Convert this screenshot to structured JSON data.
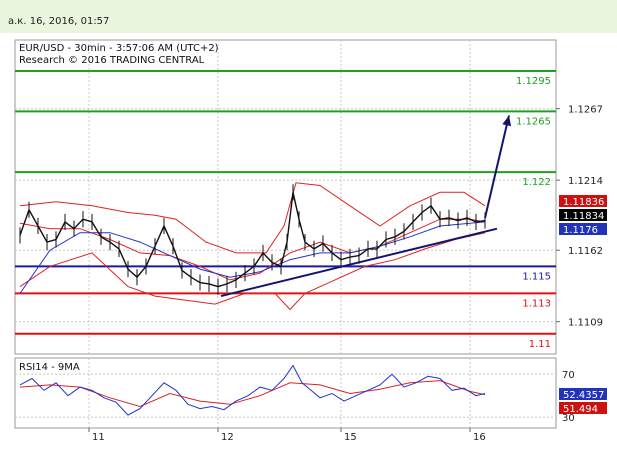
{
  "header": {
    "timestamp": "а.к. 16, 2016, 01:57"
  },
  "chart_data": [
    {
      "type": "line",
      "title": "EUR/USD - 30min - 3:57:06 AM (UTC+2)",
      "subtitle": "Research © 2016 TRADING CENTRAL",
      "x_ticks": [
        "11",
        "12",
        "15",
        "16"
      ],
      "y_ticks": [
        "1.1267",
        "1.1214",
        "1.1162",
        "1.1109"
      ],
      "ylim": [
        1.1085,
        1.1318
      ],
      "grid": true,
      "levels": [
        {
          "label": "1.1295",
          "value": 1.1295,
          "color": "#1fa11f"
        },
        {
          "label": "1.1265",
          "value": 1.1265,
          "color": "#1fa11f"
        },
        {
          "label": "1.122",
          "value": 1.122,
          "color": "#1fa11f"
        },
        {
          "label": "1.115",
          "value": 1.115,
          "color": "#1a1aa8"
        },
        {
          "label": "1.113",
          "value": 1.113,
          "color": "#dd1111"
        },
        {
          "label": "1.11",
          "value": 1.11,
          "color": "#dd1111"
        }
      ],
      "price_tags": [
        {
          "label": "1.11836",
          "bg": "#cc1111"
        },
        {
          "label": "1.11834",
          "bg": "#000000"
        },
        {
          "label": "1.1176",
          "bg": "#2233bb"
        }
      ],
      "close_series": [
        [
          0,
          1.1173
        ],
        [
          3,
          1.1192
        ],
        [
          6,
          1.118
        ],
        [
          9,
          1.1168
        ],
        [
          12,
          1.117
        ],
        [
          15,
          1.1183
        ],
        [
          18,
          1.1178
        ],
        [
          21,
          1.1185
        ],
        [
          24,
          1.1183
        ],
        [
          27,
          1.1172
        ],
        [
          30,
          1.1168
        ],
        [
          33,
          1.1163
        ],
        [
          36,
          1.1148
        ],
        [
          39,
          1.1142
        ],
        [
          42,
          1.115
        ],
        [
          45,
          1.1165
        ],
        [
          48,
          1.118
        ],
        [
          51,
          1.1165
        ],
        [
          54,
          1.1147
        ],
        [
          57,
          1.1142
        ],
        [
          60,
          1.1138
        ],
        [
          63,
          1.1137
        ],
        [
          66,
          1.1135
        ],
        [
          69,
          1.1137
        ],
        [
          72,
          1.114
        ],
        [
          75,
          1.1145
        ],
        [
          78,
          1.115
        ],
        [
          81,
          1.116
        ],
        [
          84,
          1.1153
        ],
        [
          87,
          1.115
        ],
        [
          89,
          1.1168
        ],
        [
          91,
          1.1205
        ],
        [
          93,
          1.1185
        ],
        [
          95,
          1.1168
        ],
        [
          98,
          1.1163
        ],
        [
          101,
          1.1167
        ],
        [
          104,
          1.116
        ],
        [
          107,
          1.1155
        ],
        [
          110,
          1.1157
        ],
        [
          113,
          1.1158
        ],
        [
          116,
          1.1163
        ],
        [
          119,
          1.1163
        ],
        [
          122,
          1.117
        ],
        [
          125,
          1.1172
        ],
        [
          128,
          1.1176
        ],
        [
          131,
          1.1183
        ],
        [
          134,
          1.119
        ],
        [
          137,
          1.1195
        ],
        [
          140,
          1.1185
        ],
        [
          143,
          1.1186
        ],
        [
          146,
          1.1184
        ],
        [
          149,
          1.1186
        ],
        [
          152,
          1.1183
        ],
        [
          155,
          1.1184
        ]
      ],
      "bb_upper": [
        [
          0,
          1.1195
        ],
        [
          12,
          1.1198
        ],
        [
          24,
          1.1195
        ],
        [
          36,
          1.119
        ],
        [
          45,
          1.1188
        ],
        [
          52,
          1.1185
        ],
        [
          62,
          1.1168
        ],
        [
          72,
          1.116
        ],
        [
          82,
          1.116
        ],
        [
          88,
          1.118
        ],
        [
          92,
          1.1212
        ],
        [
          100,
          1.121
        ],
        [
          110,
          1.1195
        ],
        [
          120,
          1.118
        ],
        [
          130,
          1.1195
        ],
        [
          140,
          1.1205
        ],
        [
          148,
          1.1205
        ],
        [
          155,
          1.1195
        ]
      ],
      "bb_lower": [
        [
          0,
          1.1135
        ],
        [
          10,
          1.115
        ],
        [
          24,
          1.116
        ],
        [
          36,
          1.1135
        ],
        [
          45,
          1.1128
        ],
        [
          55,
          1.1125
        ],
        [
          65,
          1.1122
        ],
        [
          75,
          1.113
        ],
        [
          85,
          1.113
        ],
        [
          90,
          1.1118
        ],
        [
          95,
          1.113
        ],
        [
          105,
          1.114
        ],
        [
          115,
          1.115
        ],
        [
          125,
          1.1155
        ],
        [
          135,
          1.1163
        ],
        [
          145,
          1.117
        ],
        [
          155,
          1.1175
        ]
      ],
      "ma_blue": [
        [
          0,
          1.113
        ],
        [
          10,
          1.1162
        ],
        [
          20,
          1.1175
        ],
        [
          30,
          1.1175
        ],
        [
          40,
          1.1168
        ],
        [
          50,
          1.1158
        ],
        [
          60,
          1.1148
        ],
        [
          70,
          1.1142
        ],
        [
          80,
          1.1146
        ],
        [
          90,
          1.1155
        ],
        [
          100,
          1.116
        ],
        [
          110,
          1.116
        ],
        [
          120,
          1.1165
        ],
        [
          130,
          1.1172
        ],
        [
          140,
          1.118
        ],
        [
          150,
          1.1182
        ],
        [
          155,
          1.1183
        ]
      ],
      "ma_red": [
        [
          0,
          1.1182
        ],
        [
          10,
          1.1178
        ],
        [
          20,
          1.1178
        ],
        [
          30,
          1.117
        ],
        [
          40,
          1.116
        ],
        [
          50,
          1.1158
        ],
        [
          60,
          1.115
        ],
        [
          70,
          1.114
        ],
        [
          80,
          1.1145
        ],
        [
          90,
          1.116
        ],
        [
          100,
          1.1168
        ],
        [
          110,
          1.116
        ],
        [
          120,
          1.1165
        ],
        [
          130,
          1.1175
        ],
        [
          140,
          1.1185
        ],
        [
          150,
          1.1185
        ],
        [
          155,
          1.1183
        ]
      ],
      "trendline": {
        "from": [
          67,
          1.1128
        ],
        "to": [
          159,
          1.1178
        ]
      },
      "forecast_arrow": {
        "from": [
          155,
          1.1186
        ],
        "to": [
          163,
          1.1262
        ]
      }
    },
    {
      "type": "line",
      "title": "RSI14 - 9MA",
      "y_ticks": [
        "70",
        "30"
      ],
      "ylim": [
        20,
        85
      ],
      "value_tags": [
        {
          "label": "52.4357",
          "bg": "#2233bb"
        },
        {
          "label": "51.494",
          "bg": "#cc1111"
        }
      ],
      "rsi": [
        [
          0,
          60
        ],
        [
          4,
          66
        ],
        [
          8,
          55
        ],
        [
          12,
          62
        ],
        [
          16,
          50
        ],
        [
          20,
          58
        ],
        [
          24,
          55
        ],
        [
          28,
          48
        ],
        [
          32,
          44
        ],
        [
          36,
          32
        ],
        [
          40,
          38
        ],
        [
          44,
          50
        ],
        [
          48,
          62
        ],
        [
          52,
          55
        ],
        [
          56,
          42
        ],
        [
          60,
          38
        ],
        [
          64,
          40
        ],
        [
          68,
          37
        ],
        [
          72,
          45
        ],
        [
          76,
          50
        ],
        [
          80,
          58
        ],
        [
          84,
          55
        ],
        [
          88,
          66
        ],
        [
          91,
          78
        ],
        [
          94,
          62
        ],
        [
          97,
          55
        ],
        [
          100,
          48
        ],
        [
          104,
          52
        ],
        [
          108,
          45
        ],
        [
          112,
          50
        ],
        [
          116,
          55
        ],
        [
          120,
          60
        ],
        [
          124,
          70
        ],
        [
          128,
          58
        ],
        [
          132,
          62
        ],
        [
          136,
          68
        ],
        [
          140,
          66
        ],
        [
          144,
          55
        ],
        [
          148,
          57
        ],
        [
          152,
          50
        ],
        [
          155,
          52
        ]
      ],
      "rsi_ma": [
        [
          0,
          58
        ],
        [
          10,
          60
        ],
        [
          20,
          58
        ],
        [
          30,
          48
        ],
        [
          40,
          40
        ],
        [
          50,
          52
        ],
        [
          60,
          45
        ],
        [
          70,
          42
        ],
        [
          80,
          50
        ],
        [
          90,
          62
        ],
        [
          100,
          60
        ],
        [
          110,
          52
        ],
        [
          120,
          56
        ],
        [
          130,
          62
        ],
        [
          140,
          64
        ],
        [
          150,
          54
        ],
        [
          155,
          51
        ]
      ]
    }
  ]
}
